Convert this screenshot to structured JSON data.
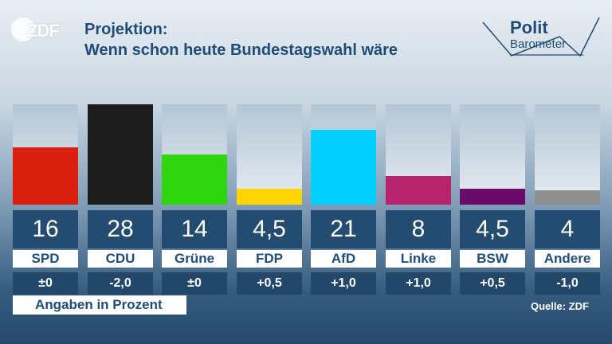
{
  "header": {
    "logo_text": "ZDF",
    "title_line1": "Projektion:",
    "title_line2": "Wenn schon heute Bundestagswahl wäre",
    "brand_line1": "Polit",
    "brand_line2": "Barometer"
  },
  "chart_data": {
    "type": "bar",
    "title": "Projektion: Wenn schon heute Bundestagswahl wäre",
    "ylim": [
      0,
      28
    ],
    "categories": [
      "SPD",
      "CDU",
      "Grüne",
      "FDP",
      "AfD",
      "Linke",
      "BSW",
      "Andere"
    ],
    "values": [
      16,
      28,
      14,
      4.5,
      21,
      8,
      4.5,
      4
    ],
    "value_labels": [
      "16",
      "28",
      "14",
      "4,5",
      "21",
      "8",
      "4,5",
      "4"
    ],
    "changes": [
      "±0",
      "-2,0",
      "±0",
      "+0,5",
      "+1,0",
      "+1,0",
      "+0,5",
      "-1,0"
    ],
    "colors": [
      "#d91f0d",
      "#1c1c1c",
      "#2fd60f",
      "#ffd600",
      "#00cfff",
      "#b8246b",
      "#6a0a6a",
      "#8f8f8f"
    ],
    "grid": false,
    "legend": "none"
  },
  "footer": {
    "note": "Angaben in Prozent",
    "source": "Quelle: ZDF"
  }
}
